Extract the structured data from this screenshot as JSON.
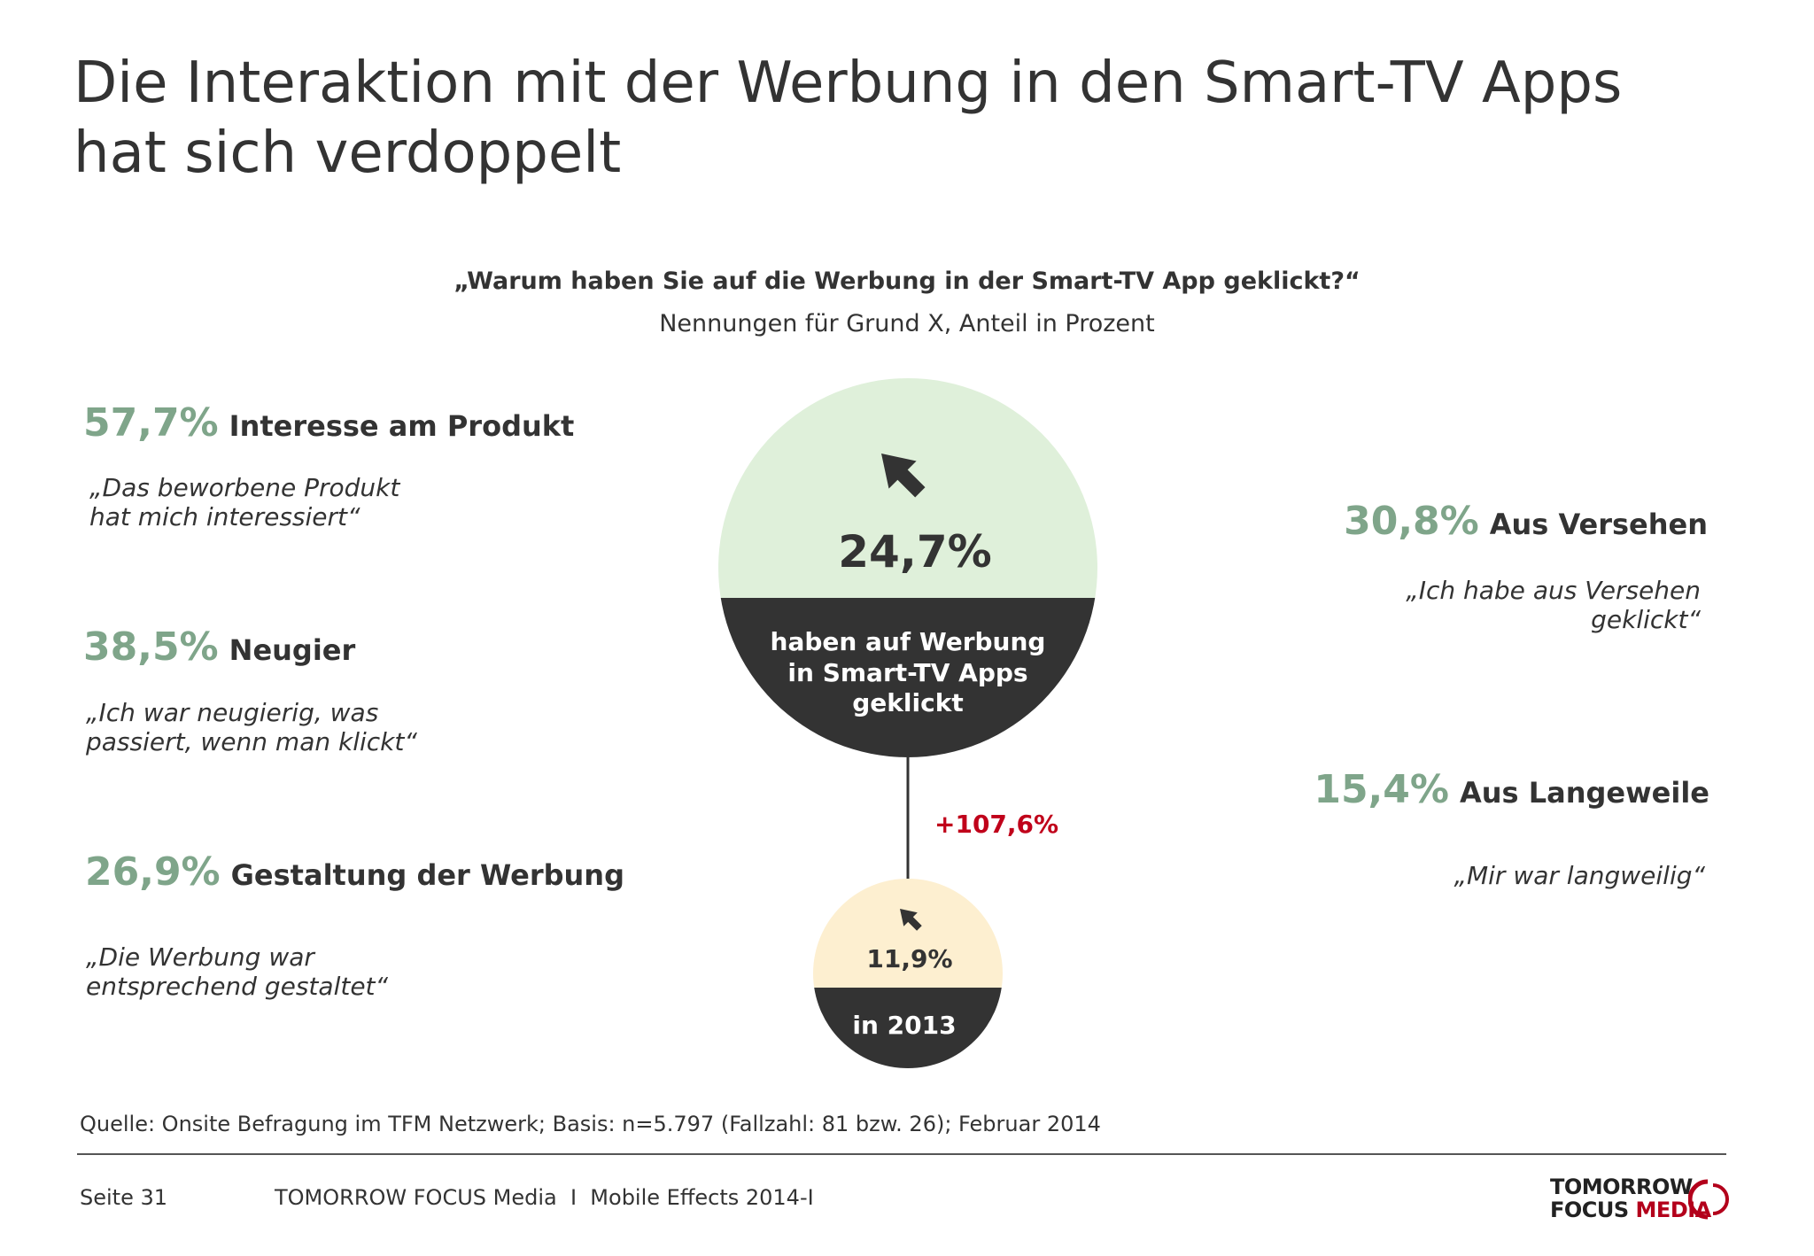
{
  "title_line1": "Die Interaktion mit der Werbung in den Smart-TV Apps",
  "title_line2": "hat sich verdoppelt",
  "question": "„Warum haben Sie auf die Werbung in der Smart-TV App geklickt?“",
  "subquestion": "Nennungen für Grund X, Anteil in Prozent",
  "colors": {
    "accent_green": "#7fa58a",
    "circle_green": "#dff0da",
    "circle_yellow": "#fdefd0",
    "dark": "#333333",
    "red": "#c0001a"
  },
  "reasons_left": [
    {
      "pct": "57,7%",
      "label": "Interesse am Produkt",
      "quote": "„Das beworbene Produkt\nhat mich interessiert“"
    },
    {
      "pct": "38,5%",
      "label": "Neugier",
      "quote": "„Ich war neugierig, was\npassiert, wenn man klickt“"
    },
    {
      "pct": "26,9%",
      "label": "Gestaltung der Werbung",
      "quote": "„Die Werbung war\nentsprechend gestaltet“"
    }
  ],
  "reasons_right": [
    {
      "pct": "30,8%",
      "label": "Aus Versehen",
      "quote": "„Ich habe aus Versehen\ngeklickt“"
    },
    {
      "pct": "15,4%",
      "label": "Aus Langeweile",
      "quote": "„Mir war langweilig“"
    }
  ],
  "big_circle": {
    "value": "24,7%",
    "caption": [
      "haben auf Werbung",
      "in Smart-TV Apps",
      "geklickt"
    ],
    "icon": "cursor-arrow-icon"
  },
  "small_circle": {
    "value": "11,9%",
    "caption": "in 2013",
    "icon": "cursor-arrow-icon"
  },
  "growth": "+107,6%",
  "source": "Quelle: Onsite Befragung im TFM Netzwerk; Basis: n=5.797 (Fallzahl: 81 bzw. 26); Februar 2014",
  "footer": {
    "page": "Seite 31",
    "text": "TOMORROW FOCUS Media  I  Mobile Effects 2014-I"
  },
  "logo": {
    "line1": "TOMORROW",
    "line2a": "FOCUS",
    "line2b": "MEDIA"
  }
}
